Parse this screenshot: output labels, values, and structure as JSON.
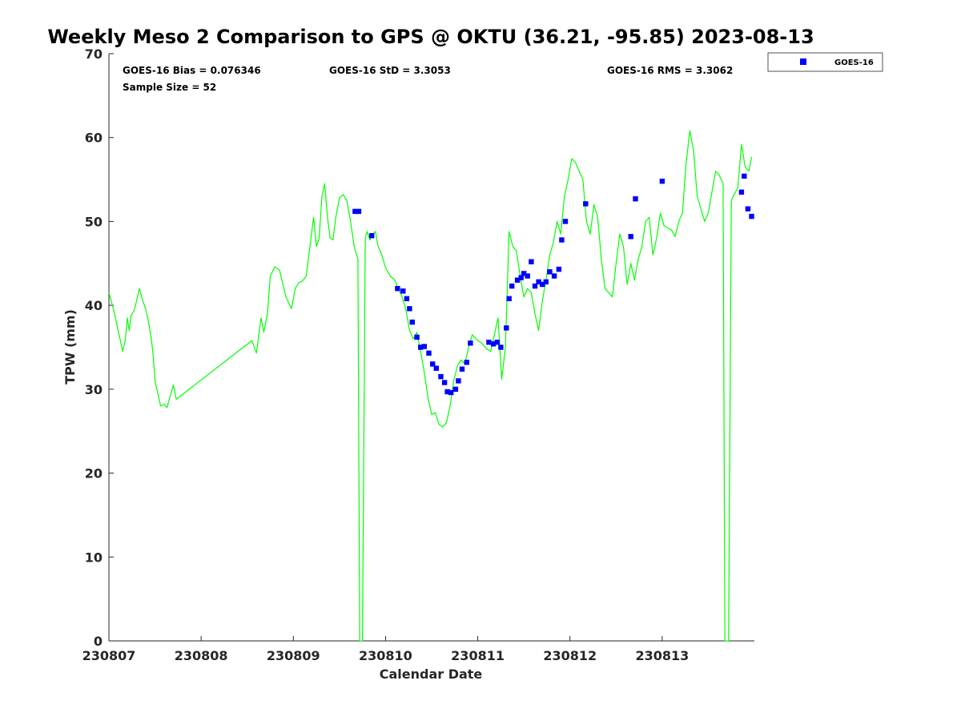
{
  "chart_data": {
    "type": "line+scatter",
    "title": "Weekly Meso 2 Comparison to GPS @ OKTU (36.21, -95.85) 2023-08-13",
    "xlabel": "Calendar Date",
    "ylabel": "TPW (mm)",
    "xlim": [
      230807,
      230814
    ],
    "ylim": [
      0,
      70
    ],
    "x_ticks": [
      {
        "value": 0,
        "label": "230807"
      },
      {
        "value": 1,
        "label": "230808"
      },
      {
        "value": 2,
        "label": "230809"
      },
      {
        "value": 3,
        "label": "230810"
      },
      {
        "value": 4,
        "label": "230811"
      },
      {
        "value": 5,
        "label": "230812"
      },
      {
        "value": 6,
        "label": "230813"
      }
    ],
    "y_ticks": [
      0,
      10,
      20,
      30,
      40,
      50,
      60,
      70
    ],
    "grid": false,
    "legend": {
      "placement": "top-right-outside",
      "entries": [
        "GOES-16"
      ]
    },
    "stats": {
      "bias": "GOES-16 Bias = 0.076346",
      "std": "GOES-16 StD = 3.3053",
      "rms": "GOES-16 RMS = 3.3062",
      "sample_size": "Sample Size = 52"
    },
    "series": [
      {
        "type": "line",
        "color": "#00ff00",
        "points": [
          [
            0.0,
            41.5
          ],
          [
            0.05,
            39.5
          ],
          [
            0.1,
            37.0
          ],
          [
            0.15,
            34.5
          ],
          [
            0.18,
            36.0
          ],
          [
            0.2,
            38.5
          ],
          [
            0.22,
            37.0
          ],
          [
            0.24,
            38.8
          ],
          [
            0.27,
            39.3
          ],
          [
            0.3,
            40.5
          ],
          [
            0.33,
            42.0
          ],
          [
            0.36,
            40.8
          ],
          [
            0.4,
            39.5
          ],
          [
            0.43,
            38.0
          ],
          [
            0.46,
            36.0
          ],
          [
            0.48,
            34.0
          ],
          [
            0.5,
            31.0
          ],
          [
            0.53,
            29.5
          ],
          [
            0.56,
            28.0
          ],
          [
            0.6,
            28.2
          ],
          [
            0.63,
            27.8
          ],
          [
            0.66,
            29.0
          ],
          [
            0.7,
            30.5
          ],
          [
            0.73,
            28.8
          ],
          [
            1.55,
            35.8
          ],
          [
            1.6,
            34.3
          ],
          [
            1.65,
            38.5
          ],
          [
            1.68,
            36.8
          ],
          [
            1.72,
            39.0
          ],
          [
            1.75,
            43.5
          ],
          [
            1.8,
            44.6
          ],
          [
            1.85,
            44.2
          ],
          [
            1.92,
            41.0
          ],
          [
            1.98,
            39.6
          ],
          [
            2.02,
            42.0
          ],
          [
            2.06,
            42.7
          ],
          [
            2.1,
            42.9
          ],
          [
            2.14,
            43.5
          ],
          [
            2.18,
            47.0
          ],
          [
            2.22,
            50.5
          ],
          [
            2.25,
            47.0
          ],
          [
            2.28,
            48.0
          ],
          [
            2.31,
            53.0
          ],
          [
            2.34,
            54.5
          ],
          [
            2.37,
            50.5
          ],
          [
            2.4,
            48.0
          ],
          [
            2.43,
            47.8
          ],
          [
            2.46,
            50.5
          ],
          [
            2.5,
            52.8
          ],
          [
            2.54,
            53.2
          ],
          [
            2.58,
            52.5
          ],
          [
            2.62,
            50.0
          ],
          [
            2.66,
            47.0
          ],
          [
            2.7,
            45.5
          ],
          [
            2.72,
            0.0
          ],
          [
            2.75,
            0.0
          ],
          [
            2.78,
            48.0
          ],
          [
            2.8,
            48.8
          ],
          [
            2.83,
            47.8
          ],
          [
            2.86,
            48.5
          ],
          [
            2.89,
            48.8
          ],
          [
            2.92,
            47.0
          ],
          [
            2.96,
            46.0
          ],
          [
            3.0,
            44.5
          ],
          [
            3.05,
            43.5
          ],
          [
            3.1,
            43.0
          ],
          [
            3.14,
            42.0
          ],
          [
            3.18,
            41.0
          ],
          [
            3.22,
            39.5
          ],
          [
            3.26,
            37.0
          ],
          [
            3.3,
            36.0
          ],
          [
            3.34,
            36.8
          ],
          [
            3.38,
            34.5
          ],
          [
            3.42,
            32.0
          ],
          [
            3.46,
            29.0
          ],
          [
            3.5,
            27.0
          ],
          [
            3.54,
            27.2
          ],
          [
            3.58,
            25.8
          ],
          [
            3.62,
            25.5
          ],
          [
            3.66,
            26.0
          ],
          [
            3.7,
            28.0
          ],
          [
            3.74,
            31.0
          ],
          [
            3.78,
            32.8
          ],
          [
            3.82,
            33.5
          ],
          [
            3.86,
            33.0
          ],
          [
            3.9,
            35.0
          ],
          [
            3.94,
            36.5
          ],
          [
            3.98,
            36.0
          ],
          [
            4.04,
            35.5
          ],
          [
            4.1,
            34.8
          ],
          [
            4.14,
            34.5
          ],
          [
            4.18,
            36.5
          ],
          [
            4.22,
            38.5
          ],
          [
            4.26,
            31.2
          ],
          [
            4.3,
            35.0
          ],
          [
            4.34,
            48.8
          ],
          [
            4.38,
            47.0
          ],
          [
            4.42,
            46.5
          ],
          [
            4.46,
            43.5
          ],
          [
            4.5,
            41.0
          ],
          [
            4.54,
            42.0
          ],
          [
            4.58,
            41.5
          ],
          [
            4.62,
            39.0
          ],
          [
            4.66,
            37.0
          ],
          [
            4.7,
            40.5
          ],
          [
            4.74,
            43.0
          ],
          [
            4.78,
            46.0
          ],
          [
            4.82,
            47.5
          ],
          [
            4.86,
            50.0
          ],
          [
            4.9,
            48.5
          ],
          [
            4.94,
            53.0
          ],
          [
            4.98,
            55.0
          ],
          [
            5.02,
            57.5
          ],
          [
            5.06,
            57.0
          ],
          [
            5.1,
            56.0
          ],
          [
            5.14,
            55.0
          ],
          [
            5.18,
            50.0
          ],
          [
            5.22,
            48.5
          ],
          [
            5.26,
            52.0
          ],
          [
            5.3,
            50.5
          ],
          [
            5.34,
            45.5
          ],
          [
            5.38,
            42.0
          ],
          [
            5.42,
            41.5
          ],
          [
            5.46,
            41.0
          ],
          [
            5.5,
            45.0
          ],
          [
            5.54,
            48.5
          ],
          [
            5.58,
            47.0
          ],
          [
            5.62,
            42.5
          ],
          [
            5.66,
            45.0
          ],
          [
            5.7,
            43.0
          ],
          [
            5.74,
            45.5
          ],
          [
            5.78,
            47.0
          ],
          [
            5.82,
            50.0
          ],
          [
            5.86,
            50.5
          ],
          [
            5.9,
            46.0
          ],
          [
            5.94,
            48.0
          ],
          [
            5.98,
            51.0
          ],
          [
            6.02,
            49.5
          ],
          [
            6.06,
            49.2
          ],
          [
            6.1,
            49.0
          ],
          [
            6.14,
            48.2
          ],
          [
            6.18,
            50.0
          ],
          [
            6.22,
            51.0
          ],
          [
            6.26,
            57.0
          ],
          [
            6.3,
            60.8
          ],
          [
            6.34,
            58.5
          ],
          [
            6.38,
            53.0
          ],
          [
            6.42,
            51.5
          ],
          [
            6.46,
            50.0
          ],
          [
            6.5,
            51.0
          ],
          [
            6.54,
            53.5
          ],
          [
            6.58,
            56.0
          ],
          [
            6.62,
            55.5
          ],
          [
            6.66,
            54.5
          ],
          [
            6.68,
            0.0
          ],
          [
            6.72,
            0.0
          ],
          [
            6.75,
            52.5
          ],
          [
            6.78,
            53.2
          ],
          [
            6.82,
            54.0
          ],
          [
            6.86,
            59.2
          ],
          [
            6.9,
            56.5
          ],
          [
            6.94,
            56.0
          ],
          [
            6.97,
            57.7
          ]
        ]
      },
      {
        "type": "scatter",
        "name": "GOES-16",
        "color": "#0000ff",
        "marker": "square",
        "points": [
          [
            2.67,
            51.2
          ],
          [
            2.71,
            51.2
          ],
          [
            2.85,
            48.3
          ],
          [
            3.13,
            42.0
          ],
          [
            3.19,
            41.7
          ],
          [
            3.23,
            40.8
          ],
          [
            3.26,
            39.6
          ],
          [
            3.29,
            38.0
          ],
          [
            3.34,
            36.2
          ],
          [
            3.38,
            35.0
          ],
          [
            3.42,
            35.1
          ],
          [
            3.47,
            34.3
          ],
          [
            3.51,
            33.0
          ],
          [
            3.55,
            32.5
          ],
          [
            3.6,
            31.5
          ],
          [
            3.64,
            30.8
          ],
          [
            3.67,
            29.7
          ],
          [
            3.71,
            29.6
          ],
          [
            3.76,
            30.0
          ],
          [
            3.79,
            31.0
          ],
          [
            3.83,
            32.4
          ],
          [
            3.88,
            33.2
          ],
          [
            3.92,
            35.5
          ],
          [
            4.12,
            35.6
          ],
          [
            4.17,
            35.4
          ],
          [
            4.21,
            35.6
          ],
          [
            4.25,
            35.0
          ],
          [
            4.31,
            37.3
          ],
          [
            4.34,
            40.8
          ],
          [
            4.37,
            42.3
          ],
          [
            4.43,
            43.0
          ],
          [
            4.47,
            43.3
          ],
          [
            4.5,
            43.8
          ],
          [
            4.54,
            43.5
          ],
          [
            4.58,
            45.2
          ],
          [
            4.62,
            42.3
          ],
          [
            4.66,
            42.8
          ],
          [
            4.7,
            42.5
          ],
          [
            4.74,
            42.8
          ],
          [
            4.78,
            44.0
          ],
          [
            4.83,
            43.5
          ],
          [
            4.88,
            44.3
          ],
          [
            4.91,
            47.8
          ],
          [
            4.95,
            50.0
          ],
          [
            5.17,
            52.1
          ],
          [
            5.66,
            48.2
          ],
          [
            5.71,
            52.7
          ],
          [
            6.0,
            54.8
          ],
          [
            6.86,
            53.5
          ],
          [
            6.89,
            55.4
          ],
          [
            6.93,
            51.5
          ],
          [
            6.97,
            50.6
          ]
        ]
      }
    ]
  }
}
